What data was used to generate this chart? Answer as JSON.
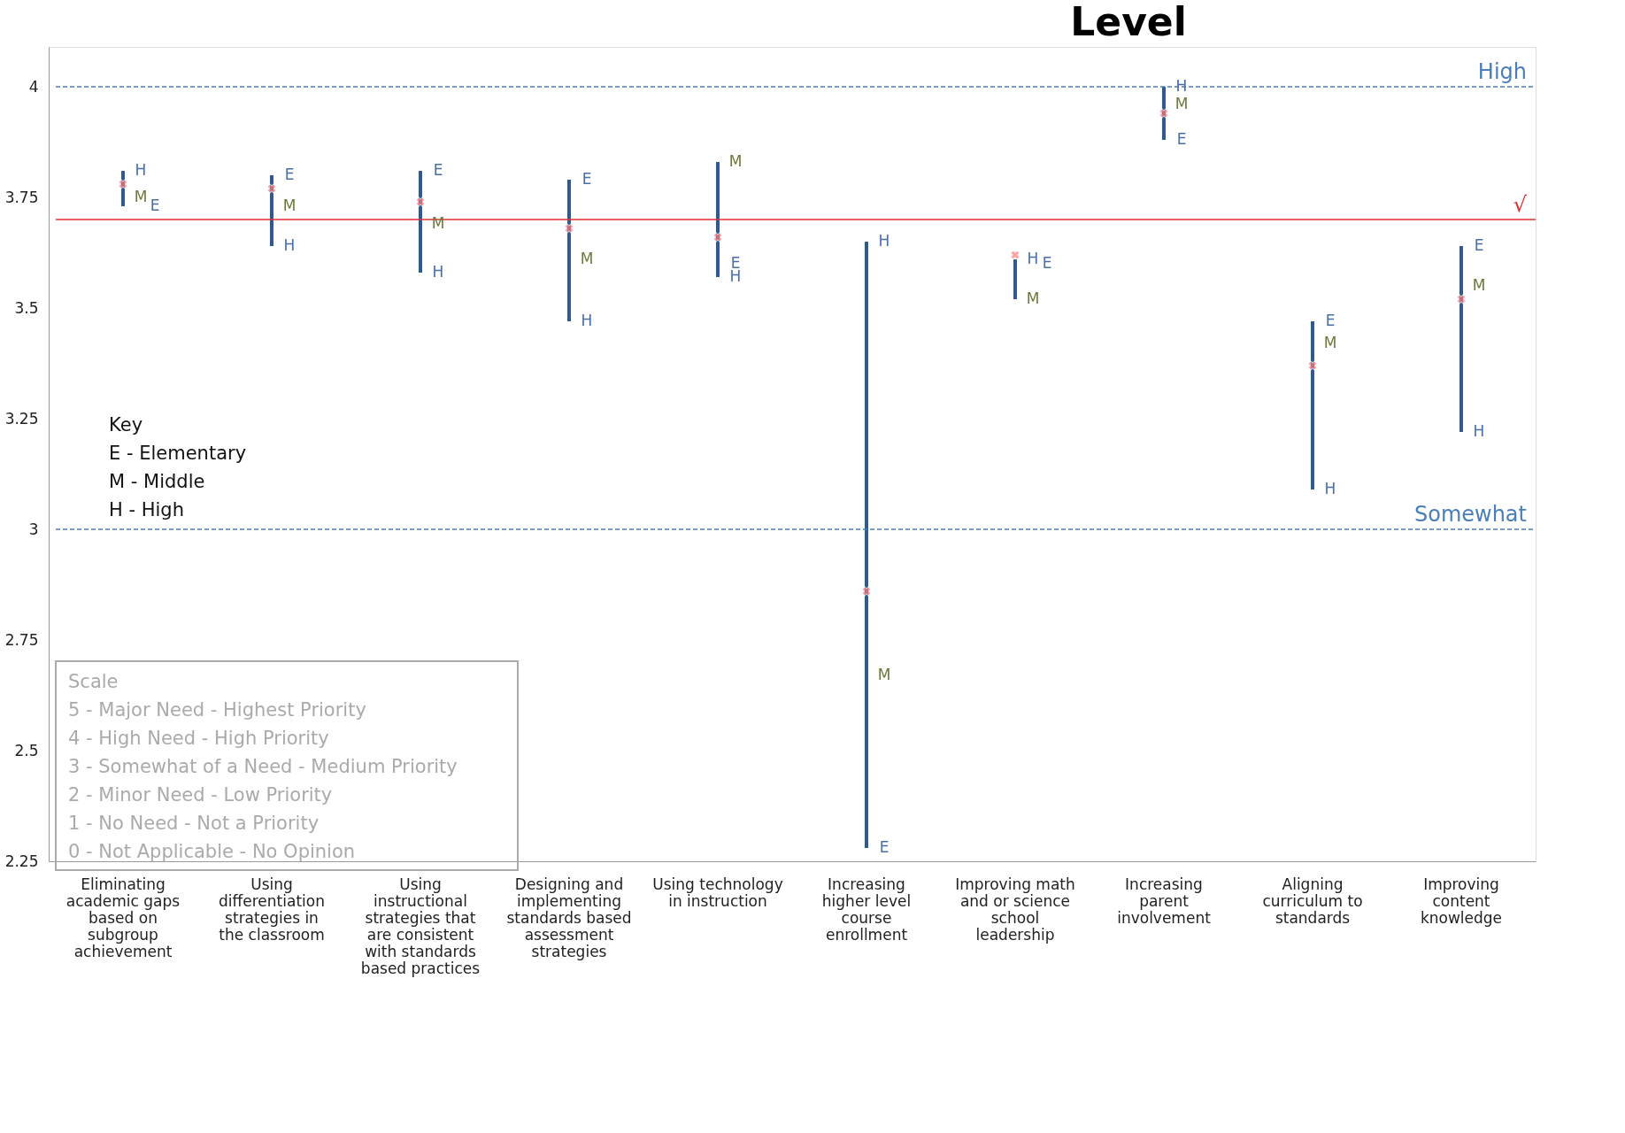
{
  "chart_data": {
    "type": "scatter",
    "title": "Level",
    "categories": [
      "Eliminating academic gaps based on subgroup achievement",
      "Using differentiation strategies in the classroom",
      "Using instructional strategies that are consistent with standards based practices",
      "Designing and implementing standards based assessment strategies",
      "Using technology in instruction",
      "Increasing higher level course enrollment",
      "Improving math and or science school leadership",
      "Increasing parent involvement",
      "Aligning curriculum to standards",
      "Improving content knowledge"
    ],
    "series": [
      {
        "marker": "cross",
        "color": "#ff7b7b",
        "values": [
          3.78,
          3.77,
          3.74,
          3.68,
          3.66,
          2.86,
          3.62,
          3.94,
          3.37,
          3.52
        ],
        "errors": [
          [
            3.73,
            3.81
          ],
          [
            3.64,
            3.8
          ],
          [
            3.58,
            3.81
          ],
          [
            3.47,
            3.79
          ],
          [
            3.57,
            3.83
          ],
          [
            2.28,
            3.65
          ],
          [
            3.52,
            3.61
          ],
          [
            3.88,
            4.0
          ],
          [
            3.09,
            3.47
          ],
          [
            3.22,
            3.64
          ]
        ]
      }
    ],
    "ylim": [
      2.25,
      4.09
    ],
    "yticks": [
      {
        "value": 2.25,
        "label": "2.25"
      },
      {
        "value": 2.5,
        "label": "2.5"
      },
      {
        "value": 2.75,
        "label": "2.75"
      },
      {
        "value": 3,
        "label": "3"
      },
      {
        "value": 3.25,
        "label": "3.25"
      },
      {
        "value": 3.5,
        "label": "3.5"
      },
      {
        "value": 3.75,
        "label": "3.75"
      },
      {
        "value": 4,
        "label": "4"
      }
    ],
    "grid": false,
    "ref_lines": [
      {
        "axis": "y",
        "value": 4,
        "label": "High",
        "color": "#4a7ebb",
        "line_style": "dashed"
      },
      {
        "axis": "y",
        "value": 3,
        "label": "Somewhat",
        "color": "#4a7ebb",
        "line_style": "dashed"
      },
      {
        "axis": "y",
        "value": 3.7,
        "label": "√",
        "color": "#e03030",
        "line_style": "solid"
      }
    ],
    "annotations": [
      "Key",
      "E - Elementary",
      "M - Middle",
      "H - High",
      "Scale",
      "5 - Major Need - Highest Priority",
      "4 - High Need - High Priority",
      "3 - Somewhat of a Need - Medium Priority",
      "2 - Minor Need - Low Priority",
      "1 - No Need - Not a Priority",
      "0 - Not Applicable - No Opinion",
      {
        "text": "H",
        "x": "Eliminating academic gaps based on subgroup achievement",
        "y": 3.81
      },
      {
        "text": "M",
        "x": "Eliminating academic gaps based on subgroup achievement",
        "y": 3.75
      },
      {
        "text": "E",
        "x": "Eliminating academic gaps based on subgroup achievement",
        "y": 3.73
      },
      {
        "text": "E",
        "x": "Using differentiation strategies in the classroom",
        "y": 3.8
      },
      {
        "text": "M",
        "x": "Using differentiation strategies in the classroom",
        "y": 3.73
      },
      {
        "text": "H",
        "x": "Using differentiation strategies in the classroom",
        "y": 3.64
      },
      {
        "text": "E",
        "x": "Using instructional strategies that are consistent with standards based practices",
        "y": 3.81
      },
      {
        "text": "M",
        "x": "Using instructional strategies that are consistent with standards based practices",
        "y": 3.69
      },
      {
        "text": "H",
        "x": "Using instructional strategies that are consistent with standards based practices",
        "y": 3.58
      },
      {
        "text": "E",
        "x": "Designing and implementing standards based assessment strategies",
        "y": 3.79
      },
      {
        "text": "M",
        "x": "Designing and implementing standards based assessment strategies",
        "y": 3.61
      },
      {
        "text": "H",
        "x": "Designing and implementing standards based assessment strategies",
        "y": 3.47
      },
      {
        "text": "M",
        "x": "Using technology in instruction",
        "y": 3.83
      },
      {
        "text": "E",
        "x": "Using technology in instruction",
        "y": 3.6
      },
      {
        "text": "H",
        "x": "Using technology in instruction",
        "y": 3.57
      },
      {
        "text": "H",
        "x": "Increasing higher level course enrollment",
        "y": 3.65
      },
      {
        "text": "M",
        "x": "Increasing higher level course enrollment",
        "y": 2.67
      },
      {
        "text": "E",
        "x": "Increasing higher level course enrollment",
        "y": 2.28
      },
      {
        "text": "H",
        "x": "Improving math and or science school leadership",
        "y": 3.61
      },
      {
        "text": "E",
        "x": "Improving math and or science school leadership",
        "y": 3.6
      },
      {
        "text": "M",
        "x": "Improving math and or science school leadership",
        "y": 3.52
      },
      {
        "text": "H",
        "x": "Increasing parent involvement",
        "y": 4.0
      },
      {
        "text": "M",
        "x": "Increasing parent involvement",
        "y": 3.96
      },
      {
        "text": "E",
        "x": "Increasing parent involvement",
        "y": 3.88
      },
      {
        "text": "E",
        "x": "Aligning curriculum to standards",
        "y": 3.47
      },
      {
        "text": "M",
        "x": "Aligning curriculum to standards",
        "y": 3.42
      },
      {
        "text": "H",
        "x": "Aligning curriculum to standards",
        "y": 3.09
      },
      {
        "text": "E",
        "x": "Improving content knowledge",
        "y": 3.64
      },
      {
        "text": "M",
        "x": "Improving content knowledge",
        "y": 3.55
      },
      {
        "text": "H",
        "x": "Improving content knowledge",
        "y": 3.22
      }
    ]
  }
}
